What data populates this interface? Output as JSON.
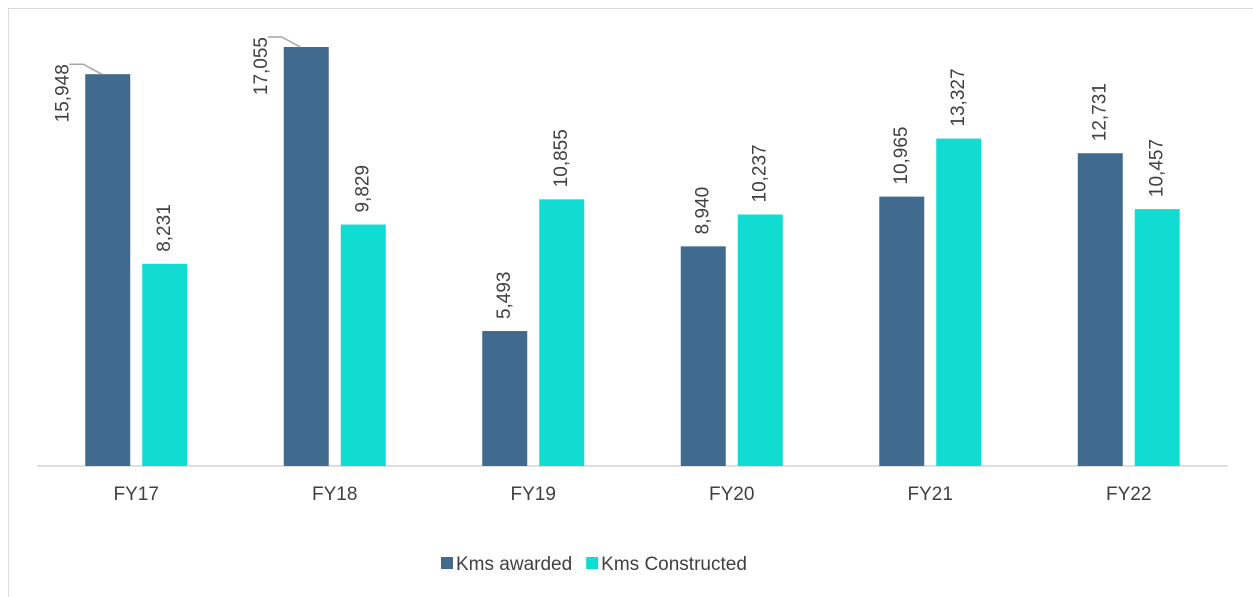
{
  "chart_data": {
    "type": "bar",
    "categories": [
      "FY17",
      "FY18",
      "FY19",
      "FY20",
      "FY21",
      "FY22"
    ],
    "series": [
      {
        "name": "Kms awarded",
        "color": "#406a8e",
        "values": [
          15948,
          17055,
          5493,
          8940,
          10965,
          12731
        ],
        "value_labels": [
          "15,948",
          "17,055",
          "5,493",
          "8,940",
          "10,965",
          "12,731"
        ]
      },
      {
        "name": "Kms Constructed",
        "color": "#10dcd2",
        "values": [
          8231,
          9829,
          10855,
          10237,
          13327,
          10457
        ],
        "value_labels": [
          "8,231",
          "9,829",
          "10,855",
          "10,237",
          "13,327",
          "10,457"
        ]
      }
    ]
  }
}
